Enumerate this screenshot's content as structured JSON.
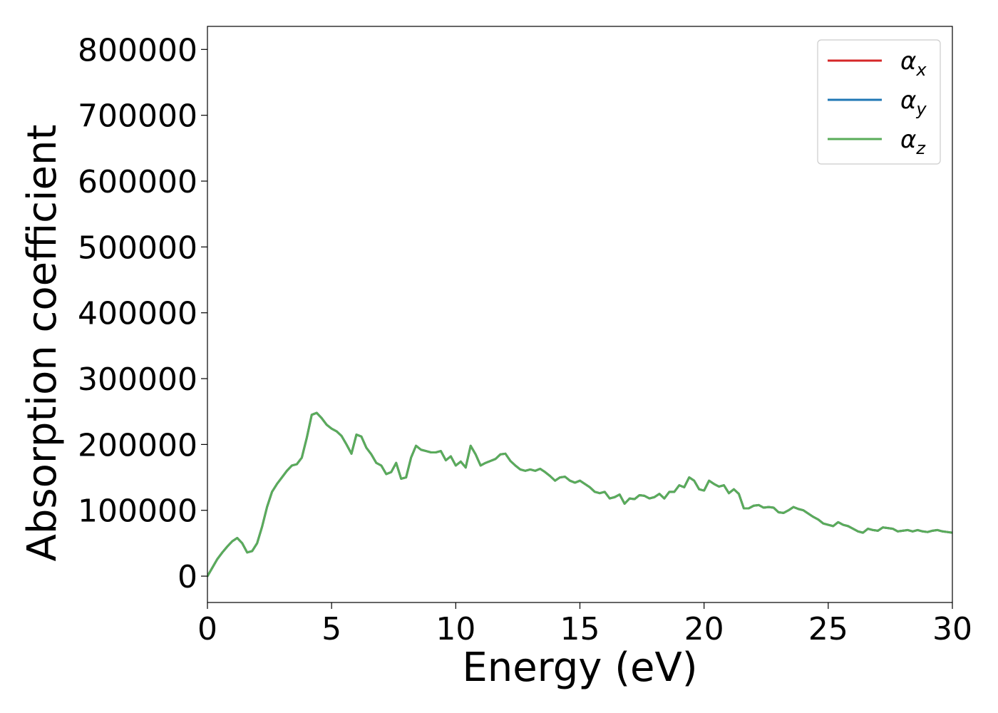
{
  "chart_data": {
    "type": "line",
    "title": "",
    "xlabel": "Energy (eV)",
    "ylabel": "Absorption coefficient",
    "xlim": [
      0,
      30
    ],
    "ylim": [
      -40000,
      835000
    ],
    "xticks": [
      0,
      5,
      10,
      15,
      20,
      25,
      30
    ],
    "yticks": [
      0,
      100000,
      200000,
      300000,
      400000,
      500000,
      600000,
      700000,
      800000
    ],
    "grid": false,
    "legend_position": "top-right",
    "series": [
      {
        "name": "αx",
        "symbol": "α",
        "subscript": "x",
        "color": "#d62728",
        "x": [
          0,
          0.2,
          0.4,
          0.6,
          0.8,
          1.0,
          1.2,
          1.4,
          1.6,
          1.8,
          2.0,
          2.2,
          2.4,
          2.6,
          2.8,
          3.0,
          3.2,
          3.4,
          3.6,
          3.8,
          4.0,
          4.2,
          4.4,
          4.6,
          4.8,
          5.0,
          5.2,
          5.4,
          5.6,
          5.8,
          6.0,
          6.2,
          6.4,
          6.6,
          6.8,
          7.0,
          7.2,
          7.4,
          7.6,
          7.8,
          8.0,
          8.2,
          8.4,
          8.6,
          8.8,
          9.0,
          9.2,
          9.4,
          9.6,
          9.8,
          10.0,
          10.2,
          10.4,
          10.6,
          10.8,
          11.0,
          11.2,
          11.4,
          11.6,
          11.8,
          12.0,
          12.2,
          12.4,
          12.6,
          12.8,
          13.0,
          13.2,
          13.4,
          13.6,
          13.8,
          14.0,
          14.2,
          14.4,
          14.6,
          14.8,
          15.0,
          15.2,
          15.4,
          15.6,
          15.8,
          16.0,
          16.2,
          16.4,
          16.6,
          16.8,
          17.0,
          17.2,
          17.4,
          17.6,
          17.8,
          18.0,
          18.2,
          18.4,
          18.6,
          18.8,
          19.0,
          19.2,
          19.4,
          19.6,
          19.8,
          20.0,
          20.2,
          20.4,
          20.6,
          20.8,
          21.0,
          21.2,
          21.4,
          21.6,
          21.8,
          22.0,
          22.2,
          22.4,
          22.6,
          22.8,
          23.0,
          23.2,
          23.4,
          23.6,
          23.8,
          24.0,
          24.2,
          24.4,
          24.6,
          24.8,
          25.0,
          25.2,
          25.4,
          25.6,
          25.8,
          26.0,
          26.2,
          26.4,
          26.6,
          26.8,
          27.0,
          27.2,
          27.4,
          27.6,
          27.8,
          28.0,
          28.2,
          28.4,
          28.6,
          28.8,
          29.0,
          29.2,
          29.4,
          29.6,
          29.8,
          30.0
        ],
        "y": [
          0,
          13000,
          26000,
          36000,
          45000,
          53000,
          58000,
          50000,
          36000,
          38000,
          50000,
          75000,
          105000,
          128000,
          140000,
          150000,
          160000,
          168000,
          170000,
          180000,
          210000,
          245000,
          248000,
          240000,
          230000,
          224000,
          220000,
          213000,
          200000,
          186000,
          215000,
          212000,
          195000,
          185000,
          172000,
          168000,
          155000,
          158000,
          172000,
          148000,
          150000,
          180000,
          198000,
          192000,
          190000,
          188000,
          188000,
          190000,
          176000,
          182000,
          168000,
          174000,
          165000,
          198000,
          185000,
          168000,
          172000,
          175000,
          178000,
          185000,
          186000,
          175000,
          168000,
          162000,
          160000,
          162000,
          160000,
          163000,
          158000,
          152000,
          145000,
          150000,
          151000,
          145000,
          142000,
          145000,
          140000,
          135000,
          128000,
          126000,
          128000,
          118000,
          120000,
          124000,
          110000,
          118000,
          117000,
          123000,
          122000,
          118000,
          120000,
          125000,
          118000,
          128000,
          128000,
          138000,
          135000,
          150000,
          145000,
          132000,
          130000,
          145000,
          140000,
          136000,
          138000,
          126000,
          132000,
          125000,
          103000,
          103000,
          107000,
          108000,
          104000,
          105000,
          104000,
          97000,
          96000,
          100000,
          105000,
          102000,
          100000,
          95000,
          90000,
          86000,
          80000,
          78000,
          76000,
          82000,
          78000,
          76000,
          72000,
          68000,
          66000,
          72000,
          70000,
          69000,
          74000,
          73000,
          72000,
          68000,
          69000,
          70000,
          68000,
          70000,
          68000,
          67000,
          69000,
          70000,
          68000,
          67000,
          66000
        ]
      },
      {
        "name": "αy",
        "symbol": "α",
        "subscript": "y",
        "color": "#1f77b4",
        "x": [
          0,
          0.2,
          0.4,
          0.6,
          0.8,
          1.0,
          1.2,
          1.4,
          1.6,
          1.8,
          2.0,
          2.2,
          2.4,
          2.6,
          2.8,
          3.0,
          3.2,
          3.4,
          3.6,
          3.8,
          4.0,
          4.2,
          4.4,
          4.6,
          4.8,
          5.0,
          5.2,
          5.4,
          5.6,
          5.8,
          6.0,
          6.2,
          6.4,
          6.6,
          6.8,
          7.0,
          7.2,
          7.4,
          7.6,
          7.8,
          8.0,
          8.2,
          8.4,
          8.6,
          8.8,
          9.0,
          9.2,
          9.4,
          9.6,
          9.8,
          10.0,
          10.2,
          10.4,
          10.6,
          10.8,
          11.0,
          11.2,
          11.4,
          11.6,
          11.8,
          12.0,
          12.2,
          12.4,
          12.6,
          12.8,
          13.0,
          13.2,
          13.4,
          13.6,
          13.8,
          14.0,
          14.2,
          14.4,
          14.6,
          14.8,
          15.0,
          15.2,
          15.4,
          15.6,
          15.8,
          16.0,
          16.2,
          16.4,
          16.6,
          16.8,
          17.0,
          17.2,
          17.4,
          17.6,
          17.8,
          18.0,
          18.2,
          18.4,
          18.6,
          18.8,
          19.0,
          19.2,
          19.4,
          19.6,
          19.8,
          20.0,
          20.2,
          20.4,
          20.6,
          20.8,
          21.0,
          21.2,
          21.4,
          21.6,
          21.8,
          22.0,
          22.2,
          22.4,
          22.6,
          22.8,
          23.0,
          23.2,
          23.4,
          23.6,
          23.8,
          24.0,
          24.2,
          24.4,
          24.6,
          24.8,
          25.0,
          25.2,
          25.4,
          25.6,
          25.8,
          26.0,
          26.2,
          26.4,
          26.6,
          26.8,
          27.0,
          27.2,
          27.4,
          27.6,
          27.8,
          28.0,
          28.2,
          28.4,
          28.6,
          28.8,
          29.0,
          29.2,
          29.4,
          29.6,
          29.8,
          30.0
        ],
        "y": [
          0,
          13000,
          26000,
          36000,
          45000,
          53000,
          58000,
          50000,
          36000,
          38000,
          50000,
          75000,
          105000,
          128000,
          140000,
          150000,
          160000,
          168000,
          170000,
          180000,
          210000,
          245000,
          248000,
          240000,
          230000,
          224000,
          220000,
          213000,
          200000,
          186000,
          215000,
          212000,
          195000,
          185000,
          172000,
          168000,
          155000,
          158000,
          172000,
          148000,
          150000,
          180000,
          198000,
          192000,
          190000,
          188000,
          188000,
          190000,
          176000,
          182000,
          168000,
          174000,
          165000,
          198000,
          185000,
          168000,
          172000,
          175000,
          178000,
          185000,
          186000,
          175000,
          168000,
          162000,
          160000,
          162000,
          160000,
          163000,
          158000,
          152000,
          145000,
          150000,
          151000,
          145000,
          142000,
          145000,
          140000,
          135000,
          128000,
          126000,
          128000,
          118000,
          120000,
          124000,
          110000,
          118000,
          117000,
          123000,
          122000,
          118000,
          120000,
          125000,
          118000,
          128000,
          128000,
          138000,
          135000,
          150000,
          145000,
          132000,
          130000,
          145000,
          140000,
          136000,
          138000,
          126000,
          132000,
          125000,
          103000,
          103000,
          107000,
          108000,
          104000,
          105000,
          104000,
          97000,
          96000,
          100000,
          105000,
          102000,
          100000,
          95000,
          90000,
          86000,
          80000,
          78000,
          76000,
          82000,
          78000,
          76000,
          72000,
          68000,
          66000,
          72000,
          70000,
          69000,
          74000,
          73000,
          72000,
          68000,
          69000,
          70000,
          68000,
          70000,
          68000,
          67000,
          69000,
          70000,
          68000,
          67000,
          66000
        ]
      },
      {
        "name": "αz",
        "symbol": "α",
        "subscript": "z",
        "color": "#5aac5a",
        "x": [
          0,
          0.2,
          0.4,
          0.6,
          0.8,
          1.0,
          1.2,
          1.4,
          1.6,
          1.8,
          2.0,
          2.2,
          2.4,
          2.6,
          2.8,
          3.0,
          3.2,
          3.4,
          3.6,
          3.8,
          4.0,
          4.2,
          4.4,
          4.6,
          4.8,
          5.0,
          5.2,
          5.4,
          5.6,
          5.8,
          6.0,
          6.2,
          6.4,
          6.6,
          6.8,
          7.0,
          7.2,
          7.4,
          7.6,
          7.8,
          8.0,
          8.2,
          8.4,
          8.6,
          8.8,
          9.0,
          9.2,
          9.4,
          9.6,
          9.8,
          10.0,
          10.2,
          10.4,
          10.6,
          10.8,
          11.0,
          11.2,
          11.4,
          11.6,
          11.8,
          12.0,
          12.2,
          12.4,
          12.6,
          12.8,
          13.0,
          13.2,
          13.4,
          13.6,
          13.8,
          14.0,
          14.2,
          14.4,
          14.6,
          14.8,
          15.0,
          15.2,
          15.4,
          15.6,
          15.8,
          16.0,
          16.2,
          16.4,
          16.6,
          16.8,
          17.0,
          17.2,
          17.4,
          17.6,
          17.8,
          18.0,
          18.2,
          18.4,
          18.6,
          18.8,
          19.0,
          19.2,
          19.4,
          19.6,
          19.8,
          20.0,
          20.2,
          20.4,
          20.6,
          20.8,
          21.0,
          21.2,
          21.4,
          21.6,
          21.8,
          22.0,
          22.2,
          22.4,
          22.6,
          22.8,
          23.0,
          23.2,
          23.4,
          23.6,
          23.8,
          24.0,
          24.2,
          24.4,
          24.6,
          24.8,
          25.0,
          25.2,
          25.4,
          25.6,
          25.8,
          26.0,
          26.2,
          26.4,
          26.6,
          26.8,
          27.0,
          27.2,
          27.4,
          27.6,
          27.8,
          28.0,
          28.2,
          28.4,
          28.6,
          28.8,
          29.0,
          29.2,
          29.4,
          29.6,
          29.8,
          30.0
        ],
        "y": [
          0,
          13000,
          26000,
          36000,
          45000,
          53000,
          58000,
          50000,
          36000,
          38000,
          50000,
          75000,
          105000,
          128000,
          140000,
          150000,
          160000,
          168000,
          170000,
          180000,
          210000,
          245000,
          248000,
          240000,
          230000,
          224000,
          220000,
          213000,
          200000,
          186000,
          215000,
          212000,
          195000,
          185000,
          172000,
          168000,
          155000,
          158000,
          172000,
          148000,
          150000,
          180000,
          198000,
          192000,
          190000,
          188000,
          188000,
          190000,
          176000,
          182000,
          168000,
          174000,
          165000,
          198000,
          185000,
          168000,
          172000,
          175000,
          178000,
          185000,
          186000,
          175000,
          168000,
          162000,
          160000,
          162000,
          160000,
          163000,
          158000,
          152000,
          145000,
          150000,
          151000,
          145000,
          142000,
          145000,
          140000,
          135000,
          128000,
          126000,
          128000,
          118000,
          120000,
          124000,
          110000,
          118000,
          117000,
          123000,
          122000,
          118000,
          120000,
          125000,
          118000,
          128000,
          128000,
          138000,
          135000,
          150000,
          145000,
          132000,
          130000,
          145000,
          140000,
          136000,
          138000,
          126000,
          132000,
          125000,
          103000,
          103000,
          107000,
          108000,
          104000,
          105000,
          104000,
          97000,
          96000,
          100000,
          105000,
          102000,
          100000,
          95000,
          90000,
          86000,
          80000,
          78000,
          76000,
          82000,
          78000,
          76000,
          72000,
          68000,
          66000,
          72000,
          70000,
          69000,
          74000,
          73000,
          72000,
          68000,
          69000,
          70000,
          68000,
          70000,
          68000,
          67000,
          69000,
          70000,
          68000,
          67000,
          66000
        ]
      }
    ]
  }
}
